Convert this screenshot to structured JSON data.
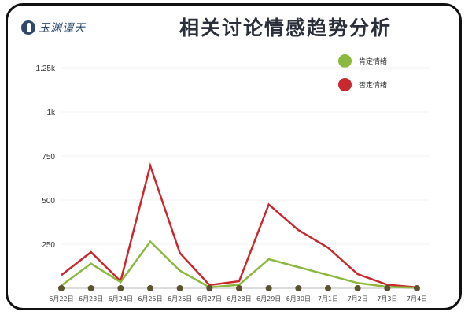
{
  "header": {
    "logo_text": "玉渊谭天",
    "title": "相关讨论情感趋势分析"
  },
  "legend": {
    "items": [
      {
        "label": "肯定情绪",
        "color": "#8bb83f"
      },
      {
        "label": "否定情绪",
        "color": "#c8282e"
      }
    ]
  },
  "chart_data": {
    "type": "line",
    "title": "相关讨论情感趋势分析",
    "xlabel": "",
    "ylabel": "",
    "ylim": [
      0,
      1250
    ],
    "yticks": [
      250,
      500,
      750,
      1000,
      1250
    ],
    "ytick_labels": [
      "250",
      "500",
      "750",
      "1k",
      "1.25k"
    ],
    "grid": true,
    "legend_position": "top-right",
    "categories": [
      "6月22日",
      "6月23日",
      "6月24日",
      "6月25日",
      "6月26日",
      "6月27日",
      "6月28日",
      "6月29日",
      "6月30日",
      "7月1日",
      "7月2日",
      "7月3日",
      "7月4日"
    ],
    "series": [
      {
        "name": "肯定情绪",
        "color": "#8bb83f",
        "values": [
          15,
          140,
          35,
          265,
          100,
          5,
          20,
          165,
          120,
          75,
          30,
          8,
          3
        ]
      },
      {
        "name": "否定情绪",
        "color": "#c8282e",
        "values": [
          75,
          205,
          40,
          695,
          200,
          18,
          40,
          475,
          330,
          230,
          80,
          20,
          5
        ]
      }
    ]
  }
}
